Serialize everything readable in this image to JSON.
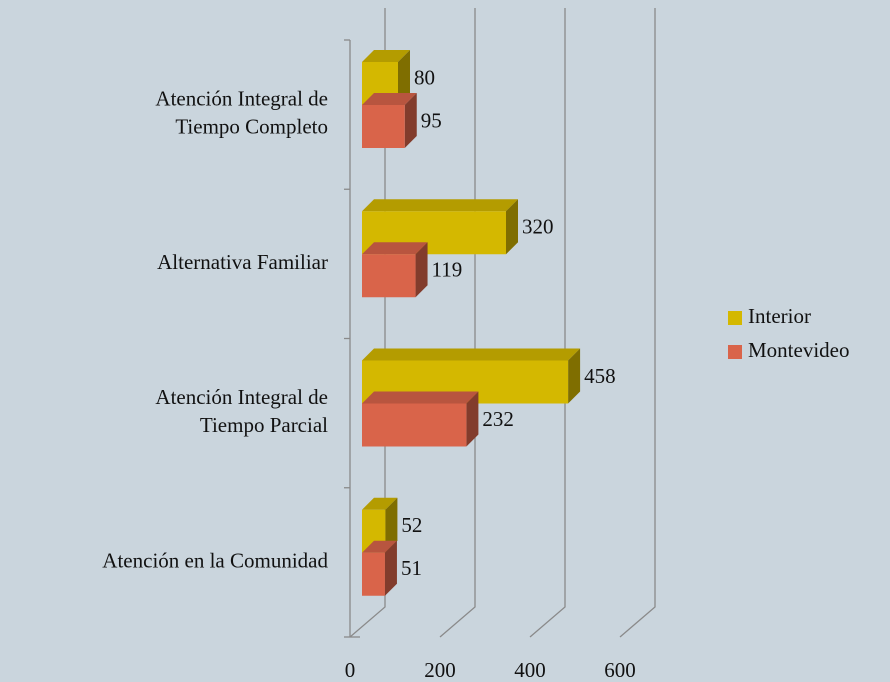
{
  "chart_data": {
    "type": "bar",
    "orientation": "horizontal",
    "categories": [
      "Atención Integral de\nTiempo Completo",
      "Alternativa Familiar",
      "Atención Integral de\nTiempo Parcial",
      "Atención en la Comunidad"
    ],
    "series": [
      {
        "name": "Interior",
        "color": "#d4b800",
        "values": [
          80,
          320,
          458,
          52
        ]
      },
      {
        "name": "Montevideo",
        "color": "#d9644a",
        "values": [
          95,
          119,
          232,
          51
        ]
      }
    ],
    "xlim": [
      0,
      600
    ],
    "xticks": [
      0,
      200,
      400,
      600
    ],
    "grid": true,
    "legend": "right"
  }
}
